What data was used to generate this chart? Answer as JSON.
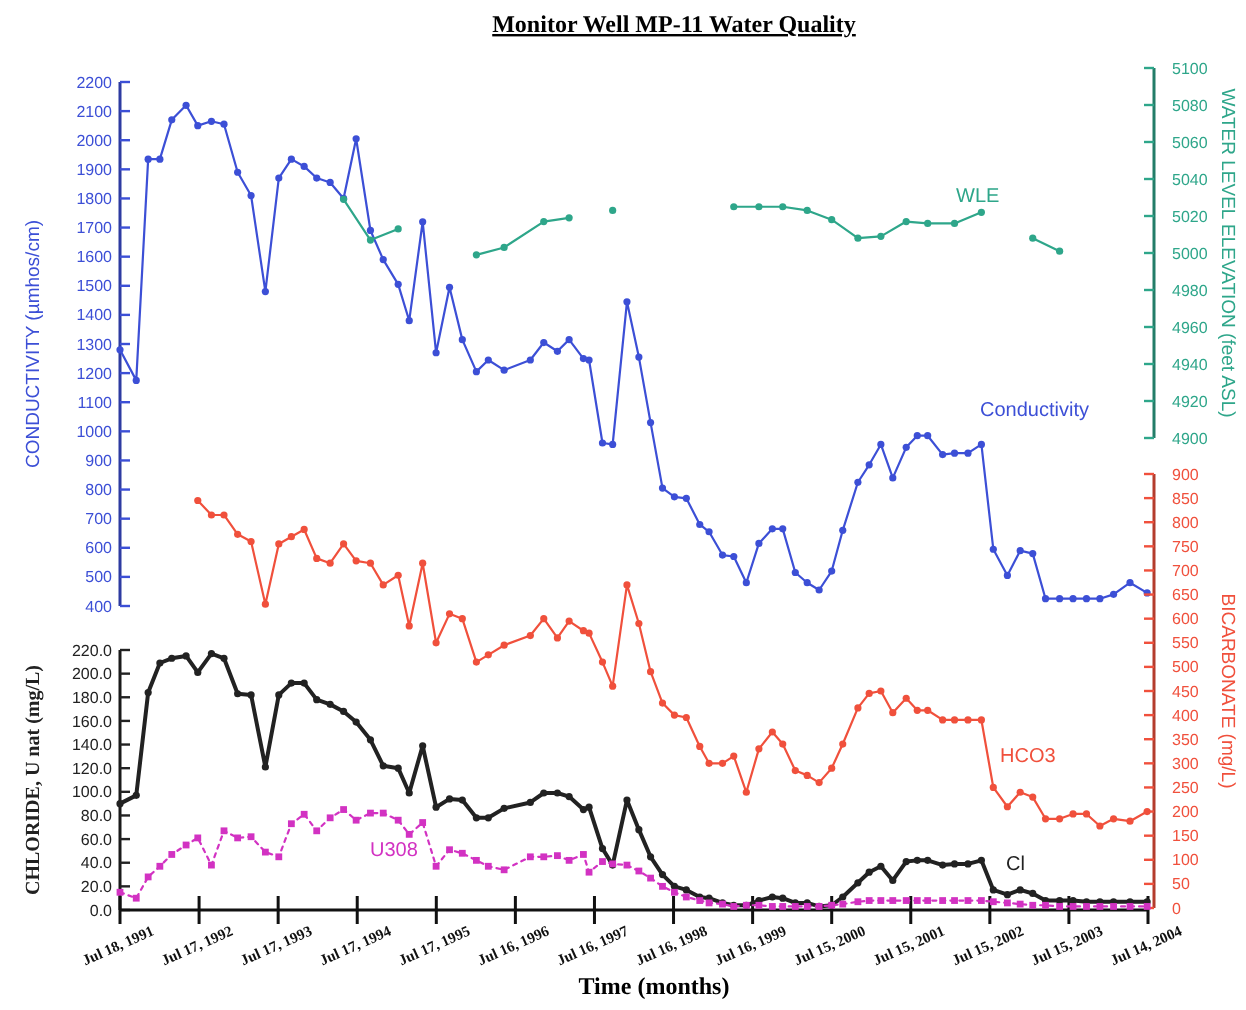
{
  "chart_data": [
    {
      "type": "line",
      "title": "Monitor Well MP-11 Water Quality",
      "ylabel": "CONDUCTIVITY (µmhos/cm)",
      "y2label": "WATER LEVEL ELEVATION (feet ASL)",
      "x": [
        "1991-07-18",
        "1991-10-01",
        "1991-11-25",
        "1992-01-18",
        "1992-03-13",
        "1992-05-18",
        "1992-07-11",
        "1992-09-12",
        "1992-11-09",
        "1993-01-11",
        "1993-03-14",
        "1993-05-19",
        "1993-07-20",
        "1993-09-16",
        "1993-11-14",
        "1994-01-11",
        "1994-03-14",
        "1994-05-15",
        "1994-07-12",
        "1994-09-16",
        "1994-11-14",
        "1995-01-22",
        "1995-03-14",
        "1995-05-15",
        "1995-07-16",
        "1995-09-16",
        "1995-11-14",
        "1996-01-18",
        "1996-03-13",
        "1996-05-25",
        "1996-09-23",
        "1996-11-24",
        "1997-01-26",
        "1997-03-21",
        "1997-05-26",
        "1997-06-21",
        "1997-08-22",
        "1997-10-08",
        "1997-12-13",
        "1998-02-06",
        "1998-04-01",
        "1998-05-26",
        "1998-07-20",
        "1998-09-13",
        "1998-11-14",
        "1998-12-27",
        "1999-02-27",
        "1999-04-20",
        "1999-06-17",
        "1999-08-14",
        "1999-10-15",
        "1999-12-02",
        "2000-01-29",
        "2000-03-24",
        "2000-05-18",
        "2000-07-15",
        "2000-09-04",
        "2000-11-13",
        "2001-01-04",
        "2001-02-27",
        "2001-04-23",
        "2001-06-24",
        "2001-08-14",
        "2001-10-01",
        "2001-12-09",
        "2002-02-02",
        "2002-04-05",
        "2002-06-06",
        "2002-07-31",
        "2002-10-04",
        "2002-12-02",
        "2003-01-29",
        "2003-03-29",
        "2003-06-02",
        "2003-08-03",
        "2003-10-04",
        "2003-12-05",
        "2004-02-06",
        "2004-04-22",
        "2004-07-10"
      ],
      "series": [
        {
          "name": "Conductivity",
          "color": "#3c4fd6",
          "axis": "y",
          "marker": "circle",
          "line_style": "solid",
          "values": [
            1280,
            1175,
            1935,
            1935,
            2070,
            2120,
            2050,
            2065,
            2055,
            1890,
            1810,
            1480,
            1870,
            1935,
            1910,
            1870,
            1855,
            1800,
            2005,
            1690,
            1590,
            1505,
            1380,
            1720,
            1270,
            1495,
            1315,
            1205,
            1245,
            1210,
            1245,
            1305,
            1275,
            1315,
            1250,
            1245,
            960,
            955,
            1445,
            1255,
            1030,
            805,
            775,
            770,
            680,
            655,
            575,
            570,
            480,
            615,
            665,
            665,
            515,
            480,
            455,
            520,
            660,
            825,
            885,
            955,
            840,
            945,
            985,
            985,
            920,
            925,
            925,
            955,
            595,
            505,
            590,
            580,
            425,
            425,
            425,
            425,
            425,
            440,
            480,
            445
          ]
        },
        {
          "name": "WLE",
          "color": "#2ea68a",
          "axis": "y2",
          "marker": "circle",
          "line_style": "solid",
          "x": [
            "1994-05-15",
            "1994-09-16",
            "1995-01-22",
            "1995-07-16",
            "1996-01-18",
            "1996-05-25",
            "1996-11-24",
            "1997-03-21",
            "1997-06-21",
            "1997-10-08",
            "1998-07-20",
            "1999-04-20",
            "1999-08-14",
            "1999-12-02",
            "2000-03-24",
            "2000-07-15",
            "2000-11-13",
            "2001-02-27",
            "2001-06-24",
            "2001-10-01",
            "2002-02-02",
            "2002-06-06",
            "2002-10-04",
            "2003-01-29",
            "2003-06-02"
          ],
          "values": [
            5029,
            5007,
            5013,
            null,
            4999,
            5003,
            5017,
            5019,
            null,
            5023,
            null,
            5025,
            5025,
            5025,
            5023,
            5018,
            5008,
            5009,
            5017,
            5016,
            5016,
            5022,
            null,
            5008,
            5001
          ]
        }
      ],
      "xlim": [
        "1991-07-18",
        "2004-07-14"
      ],
      "ylim": [
        400,
        2200
      ],
      "yticks": [
        400,
        500,
        600,
        700,
        800,
        900,
        1000,
        1100,
        1200,
        1300,
        1400,
        1500,
        1600,
        1700,
        1800,
        1900,
        2000,
        2100,
        2200
      ],
      "y2lim": [
        4900,
        5100
      ],
      "y2ticks": [
        4900,
        4920,
        4940,
        4960,
        4980,
        5000,
        5020,
        5040,
        5060,
        5080,
        5100
      ]
    },
    {
      "type": "line",
      "xlabel": "Time (months)",
      "ylabel": "CHLORIDE, U nat (mg/L)",
      "y2label": "BICARBONATE (mg/L)",
      "x": [
        "1991-07-18",
        "1991-10-01",
        "1991-11-25",
        "1992-01-18",
        "1992-03-13",
        "1992-05-18",
        "1992-07-11",
        "1992-09-12",
        "1992-11-09",
        "1993-01-11",
        "1993-03-14",
        "1993-05-19",
        "1993-07-20",
        "1993-09-16",
        "1993-11-14",
        "1994-01-11",
        "1994-03-14",
        "1994-05-15",
        "1994-07-12",
        "1994-09-16",
        "1994-11-14",
        "1995-01-22",
        "1995-03-14",
        "1995-05-15",
        "1995-07-16",
        "1995-09-16",
        "1995-11-14",
        "1996-01-18",
        "1996-03-13",
        "1996-05-25",
        "1996-09-23",
        "1996-11-24",
        "1997-01-26",
        "1997-03-21",
        "1997-05-26",
        "1997-06-21",
        "1997-08-22",
        "1997-10-08",
        "1997-12-13",
        "1998-02-06",
        "1998-04-01",
        "1998-05-26",
        "1998-07-20",
        "1998-09-13",
        "1998-11-14",
        "1998-12-27",
        "1999-02-27",
        "1999-04-20",
        "1999-06-17",
        "1999-08-14",
        "1999-10-15",
        "1999-12-02",
        "2000-01-29",
        "2000-03-24",
        "2000-05-18",
        "2000-07-15",
        "2000-09-04",
        "2000-11-13",
        "2001-01-04",
        "2001-02-27",
        "2001-04-23",
        "2001-06-24",
        "2001-08-14",
        "2001-10-01",
        "2001-12-09",
        "2002-02-02",
        "2002-04-05",
        "2002-06-06",
        "2002-07-31",
        "2002-10-04",
        "2002-12-02",
        "2003-01-29",
        "2003-03-29",
        "2003-06-02",
        "2003-08-03",
        "2003-10-04",
        "2003-12-05",
        "2004-02-06",
        "2004-04-22",
        "2004-07-10"
      ],
      "series": [
        {
          "name": "Cl",
          "color": "#222222",
          "axis": "y",
          "marker": "circle",
          "line_style": "solid",
          "values": [
            90,
            97,
            184,
            209,
            213,
            215,
            201,
            217,
            213,
            183,
            182,
            121,
            182,
            192,
            192,
            178,
            174,
            168,
            159,
            144,
            122,
            120,
            99,
            139,
            87,
            94,
            93,
            78,
            78,
            86,
            91,
            99,
            99,
            96,
            85,
            87,
            52,
            38,
            93,
            68,
            45,
            30,
            20,
            17,
            11,
            10,
            6,
            4,
            4,
            8,
            11,
            10,
            6,
            6,
            3,
            4,
            11,
            23,
            32,
            37,
            25,
            41,
            42,
            42,
            38,
            39,
            39,
            42,
            17,
            13,
            17,
            14,
            8,
            8,
            8,
            7,
            7,
            7,
            7,
            7
          ]
        },
        {
          "name": "U308",
          "color": "#d232c2",
          "axis": "y",
          "marker": "square",
          "line_style": "dotted",
          "values": [
            15,
            10,
            28,
            37,
            47,
            55,
            61,
            38,
            67,
            61,
            62,
            49,
            45,
            73,
            81,
            67,
            78,
            85,
            76,
            82,
            82,
            76,
            64,
            74,
            37,
            51,
            48,
            42,
            37,
            34,
            45,
            45,
            46,
            42,
            47,
            32,
            41,
            39,
            38,
            33,
            27,
            20,
            15,
            11,
            8,
            6,
            5,
            3,
            4,
            4,
            3,
            3,
            3,
            3,
            3,
            4,
            5,
            7,
            8,
            8,
            8,
            8,
            8,
            8,
            8,
            8,
            8,
            8,
            7,
            6,
            5,
            4,
            4,
            3,
            3,
            3,
            3,
            3,
            3,
            3
          ]
        },
        {
          "name": "HCO3",
          "color": "#f0503c",
          "axis": "y2",
          "marker": "circle",
          "line_style": "solid",
          "values": [
            null,
            null,
            null,
            null,
            null,
            null,
            845,
            815,
            815,
            775,
            760,
            630,
            755,
            770,
            785,
            725,
            715,
            755,
            720,
            715,
            670,
            690,
            585,
            715,
            550,
            610,
            600,
            510,
            525,
            545,
            565,
            600,
            560,
            595,
            575,
            570,
            510,
            460,
            670,
            590,
            490,
            425,
            400,
            395,
            335,
            300,
            300,
            315,
            240,
            330,
            365,
            340,
            285,
            275,
            260,
            290,
            340,
            415,
            445,
            450,
            405,
            435,
            410,
            410,
            390,
            390,
            390,
            390,
            250,
            210,
            240,
            230,
            185,
            185,
            195,
            195,
            170,
            185,
            180,
            200
          ]
        }
      ],
      "xlim": [
        "1991-07-18",
        "2004-07-14"
      ],
      "xticks": [
        {
          "value": "1991-07-18",
          "label": "Jul 18, 1991"
        },
        {
          "value": "1992-07-17",
          "label": "Jul 17, 1992"
        },
        {
          "value": "1993-07-17",
          "label": "Jul 17, 1993"
        },
        {
          "value": "1994-07-17",
          "label": "Jul 17, 1994"
        },
        {
          "value": "1995-07-17",
          "label": "Jul 17, 1995"
        },
        {
          "value": "1996-07-16",
          "label": "Jul 16, 1996"
        },
        {
          "value": "1997-07-16",
          "label": "Jul 16, 1997"
        },
        {
          "value": "1998-07-16",
          "label": "Jul 16, 1998"
        },
        {
          "value": "1999-07-16",
          "label": "Jul 16, 1999"
        },
        {
          "value": "2000-07-15",
          "label": "Jul 15, 2000"
        },
        {
          "value": "2001-07-15",
          "label": "Jul 15, 2001"
        },
        {
          "value": "2002-07-15",
          "label": "Jul 15, 2002"
        },
        {
          "value": "2003-07-15",
          "label": "Jul 15, 2003"
        },
        {
          "value": "2004-07-14",
          "label": "Jul 14, 2004"
        }
      ],
      "ylim": [
        0,
        220
      ],
      "yticks": [
        {
          "value": 0,
          "label": "0.0"
        },
        {
          "value": 20,
          "label": "20.0"
        },
        {
          "value": 40,
          "label": "40.0"
        },
        {
          "value": 60,
          "label": "60.0"
        },
        {
          "value": 80,
          "label": "80.0"
        },
        {
          "value": 100,
          "label": "100.0"
        },
        {
          "value": 120,
          "label": "120.0"
        },
        {
          "value": 140,
          "label": "140.0"
        },
        {
          "value": 160,
          "label": "160.0"
        },
        {
          "value": 180,
          "label": "180.0"
        },
        {
          "value": 200,
          "label": "200.0"
        },
        {
          "value": 220,
          "label": "220.0"
        }
      ],
      "y2lim": [
        0,
        900
      ],
      "y2ticks": [
        0,
        50,
        100,
        150,
        200,
        250,
        300,
        350,
        400,
        450,
        500,
        550,
        600,
        650,
        700,
        750,
        800,
        850,
        900
      ]
    }
  ]
}
